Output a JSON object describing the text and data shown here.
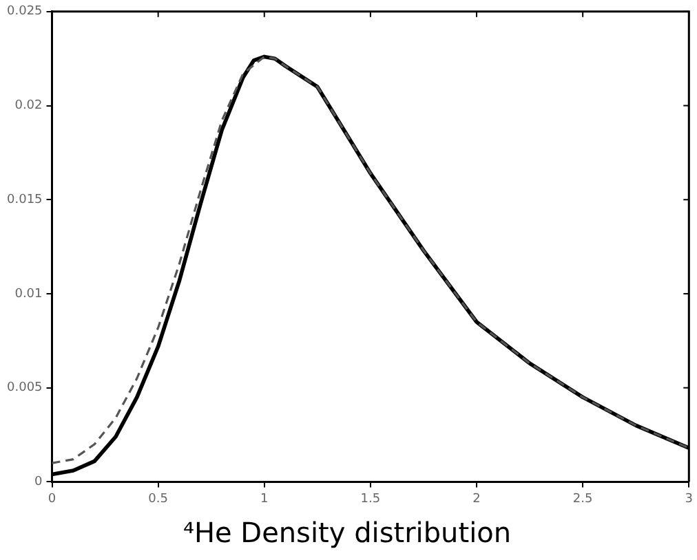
{
  "chart_data": {
    "type": "line",
    "title": "⁴He Density distribution",
    "xlim": [
      0,
      3
    ],
    "xticks": [
      0,
      0.5,
      1,
      1.5,
      2,
      2.5,
      3
    ],
    "ylim": [
      0,
      0.025
    ],
    "yticks": [
      0,
      0.005,
      0.01,
      0.015,
      0.02,
      0.025
    ],
    "grid": false,
    "legend": false,
    "marker": "none",
    "series": [
      {
        "color": "#000000",
        "line_style": "solid",
        "x": [
          0,
          0.1,
          0.2,
          0.3,
          0.4,
          0.5,
          0.6,
          0.7,
          0.8,
          0.9,
          0.95,
          1.0,
          1.05,
          1.1,
          1.25,
          1.5,
          1.75,
          2.0,
          2.25,
          2.5,
          2.75,
          3.0
        ],
        "values": [
          0.0004,
          0.0006,
          0.0011,
          0.0024,
          0.0045,
          0.0072,
          0.0107,
          0.0148,
          0.0187,
          0.0215,
          0.0224,
          0.0226,
          0.0225,
          0.0221,
          0.021,
          0.0164,
          0.0123,
          0.0085,
          0.0063,
          0.0045,
          0.003,
          0.0018
        ]
      },
      {
        "color": "#555555",
        "line_style": "dashed",
        "x": [
          0,
          0.1,
          0.2,
          0.3,
          0.4,
          0.5,
          0.6,
          0.7,
          0.8,
          0.9,
          1.0,
          1.05,
          1.1,
          1.25,
          1.5,
          1.75,
          2.0,
          2.25,
          2.5,
          2.75,
          3.0
        ],
        "values": [
          0.001,
          0.0012,
          0.002,
          0.0034,
          0.0055,
          0.0082,
          0.0116,
          0.0155,
          0.0192,
          0.0217,
          0.0226,
          0.0225,
          0.0221,
          0.021,
          0.0164,
          0.0123,
          0.0085,
          0.0063,
          0.0045,
          0.003,
          0.0018
        ]
      }
    ]
  }
}
